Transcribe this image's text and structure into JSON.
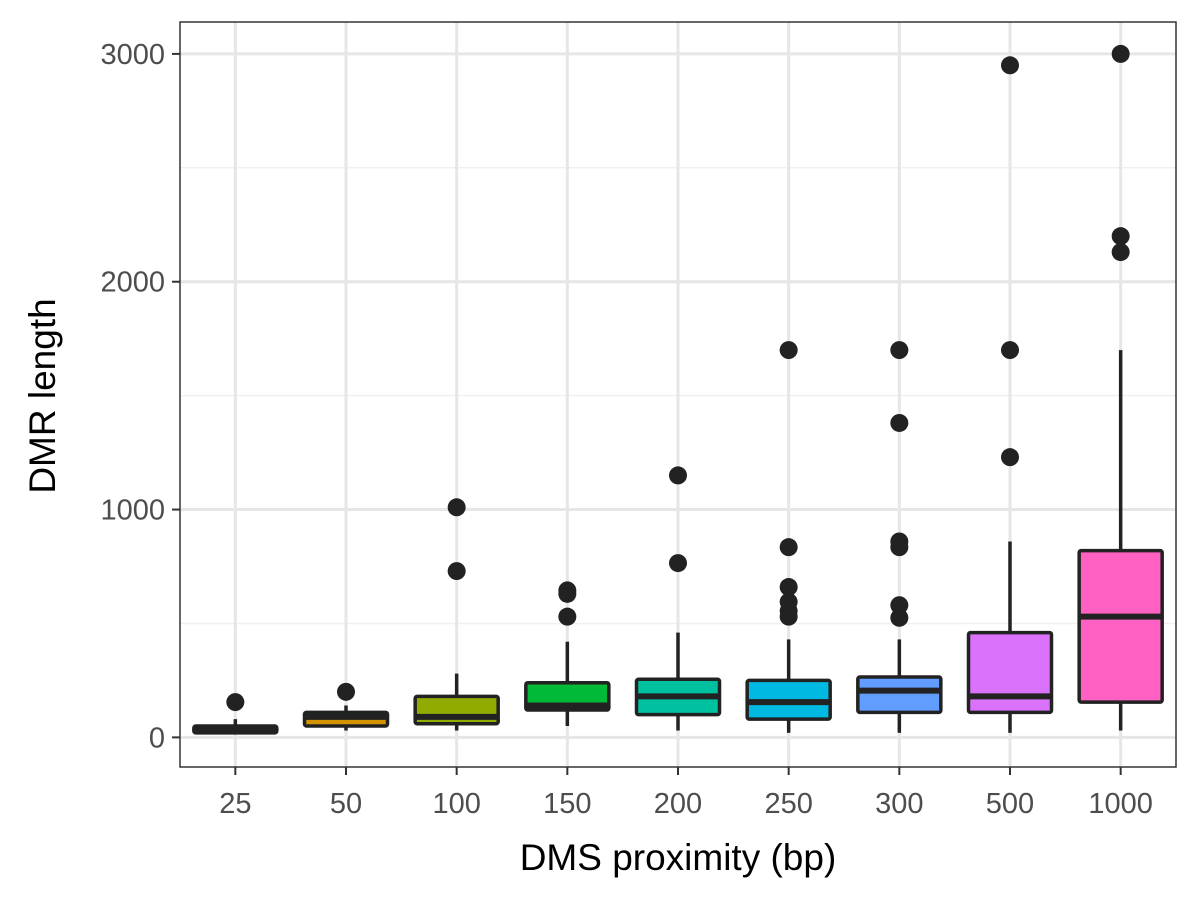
{
  "chart_data": {
    "type": "box",
    "xlabel": "DMS proximity (bp)",
    "ylabel": "DMR length",
    "categories": [
      "25",
      "50",
      "100",
      "150",
      "200",
      "250",
      "300",
      "500",
      "1000"
    ],
    "ylim": [
      -130,
      3140
    ],
    "yticks": [
      0,
      1000,
      2000,
      3000
    ],
    "grid": true,
    "legend": "none",
    "boxes": [
      {
        "category": "25",
        "color": "#F8766D",
        "q1": 20,
        "median": 35,
        "q3": 50,
        "whisker_low": 15,
        "whisker_high": 80,
        "outliers": [
          155
        ]
      },
      {
        "category": "50",
        "color": "#D39200",
        "q1": 50,
        "median": 90,
        "q3": 110,
        "whisker_low": 30,
        "whisker_high": 140,
        "outliers": [
          200
        ]
      },
      {
        "category": "100",
        "color": "#93AA00",
        "q1": 60,
        "median": 90,
        "q3": 180,
        "whisker_low": 30,
        "whisker_high": 280,
        "outliers": [
          730,
          1010
        ]
      },
      {
        "category": "150",
        "color": "#00BA38",
        "q1": 120,
        "median": 140,
        "q3": 240,
        "whisker_low": 50,
        "whisker_high": 420,
        "outliers": [
          530,
          630,
          645
        ]
      },
      {
        "category": "200",
        "color": "#00C19F",
        "q1": 100,
        "median": 180,
        "q3": 255,
        "whisker_low": 30,
        "whisker_high": 460,
        "outliers": [
          765,
          1150
        ]
      },
      {
        "category": "250",
        "color": "#00B9E3",
        "q1": 80,
        "median": 155,
        "q3": 250,
        "whisker_low": 20,
        "whisker_high": 430,
        "outliers": [
          530,
          555,
          595,
          660,
          835,
          1700
        ]
      },
      {
        "category": "300",
        "color": "#619CFF",
        "q1": 110,
        "median": 205,
        "q3": 265,
        "whisker_low": 20,
        "whisker_high": 430,
        "outliers": [
          525,
          580,
          835,
          860,
          1380,
          1700
        ]
      },
      {
        "category": "500",
        "color": "#DB72FB",
        "q1": 110,
        "median": 180,
        "q3": 460,
        "whisker_low": 20,
        "whisker_high": 860,
        "outliers": [
          1230,
          1700,
          2950
        ]
      },
      {
        "category": "1000",
        "color": "#FF61C3",
        "q1": 155,
        "median": 530,
        "q3": 820,
        "whisker_low": 30,
        "whisker_high": 1700,
        "outliers": [
          2130,
          2200,
          3000
        ]
      }
    ]
  }
}
